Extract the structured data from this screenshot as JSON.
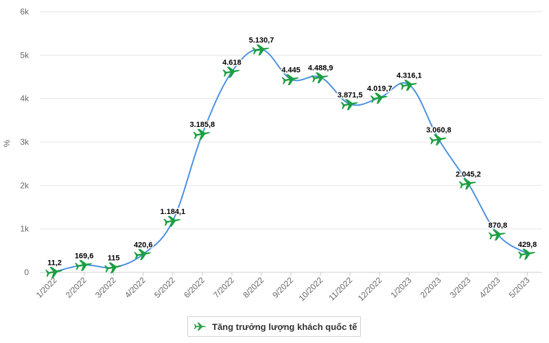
{
  "chart_data": {
    "type": "line",
    "xlabel": "",
    "ylabel": "%",
    "ylim": [
      0,
      6000
    ],
    "ytick_labels": [
      "0",
      "1k",
      "2k",
      "3k",
      "4k",
      "5k",
      "6k"
    ],
    "categories": [
      "1/2022",
      "2/2022",
      "3/2022",
      "4/2022",
      "5/2022",
      "6/2022",
      "7/2022",
      "8/2022",
      "9/2022",
      "10/2022",
      "11/2022",
      "12/2022",
      "1/2023",
      "2/2023",
      "3/2023",
      "4/2023",
      "5/2023"
    ],
    "series": [
      {
        "name": "Tăng trưởng lượng khách quốc tế",
        "values": [
          11.2,
          169.6,
          115,
          420.6,
          1184.1,
          3185.8,
          4618,
          5130.7,
          4445,
          4488.9,
          3871.5,
          4019.7,
          4316.1,
          3060.8,
          2045.2,
          870.8,
          429.8
        ],
        "labels": [
          "11,2",
          "169,6",
          "115",
          "420,6",
          "1.184,1",
          "3.185,8",
          "4.618",
          "5.130,7",
          "4.445",
          "4.488,9",
          "3.871,5",
          "4.019,7",
          "4.316,1",
          "3.060,8",
          "2.045,2",
          "870,8",
          "429,8"
        ],
        "line_color": "#4a90e2",
        "marker": "airplane-icon",
        "marker_color": "#1a9e3f"
      }
    ],
    "grid": true,
    "legend_position": "bottom-center"
  },
  "legend": {
    "label": "Tăng trưởng lượng khách quốc tế",
    "icon": "airplane-icon"
  }
}
